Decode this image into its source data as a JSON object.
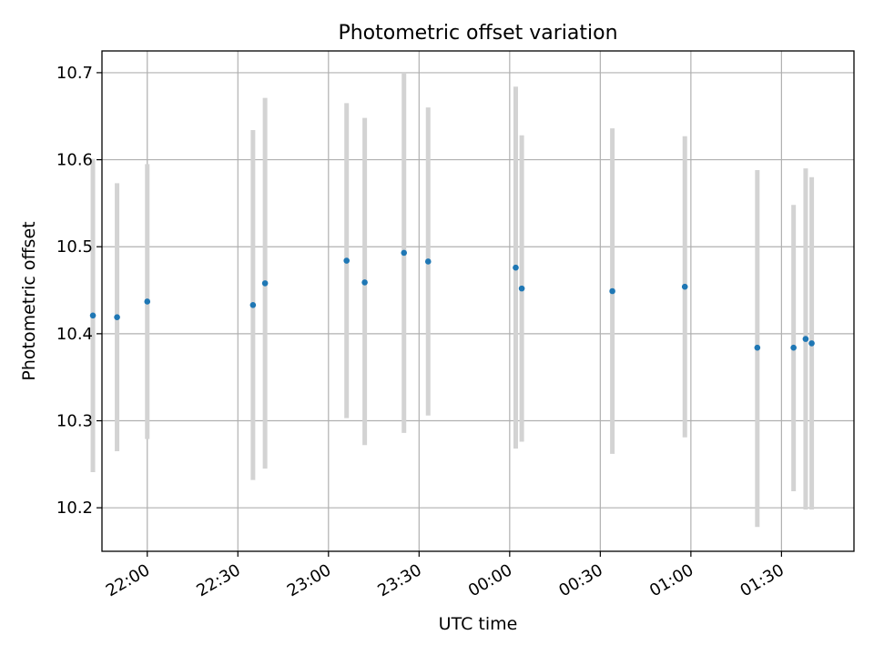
{
  "chart_data": {
    "type": "scatter",
    "title": "Photometric offset variation",
    "xlabel": "UTC time",
    "ylabel": "Photometric offset",
    "grid": true,
    "ylim": [
      10.15,
      10.725
    ],
    "xlim": [
      "21:45",
      "01:54"
    ],
    "x_tick_labels": [
      "22:00",
      "22:30",
      "23:00",
      "23:30",
      "00:00",
      "00:30",
      "01:00",
      "01:30"
    ],
    "y_tick_values": [
      10.2,
      10.3,
      10.4,
      10.5,
      10.6,
      10.7
    ],
    "y_tick_labels": [
      "10.2",
      "10.3",
      "10.4",
      "10.5",
      "10.6",
      "10.7"
    ],
    "point_color": "#1f77b4",
    "errorbar_color": "#d3d3d3",
    "points": [
      {
        "x": "21:42",
        "y": 10.421,
        "lo": 10.241,
        "hi": 10.601
      },
      {
        "x": "21:50",
        "y": 10.419,
        "lo": 10.265,
        "hi": 10.573
      },
      {
        "x": "22:00",
        "y": 10.437,
        "lo": 10.279,
        "hi": 10.595
      },
      {
        "x": "22:35",
        "y": 10.433,
        "lo": 10.232,
        "hi": 10.634
      },
      {
        "x": "22:39",
        "y": 10.458,
        "lo": 10.245,
        "hi": 10.671
      },
      {
        "x": "23:06",
        "y": 10.484,
        "lo": 10.303,
        "hi": 10.665
      },
      {
        "x": "23:12",
        "y": 10.459,
        "lo": 10.272,
        "hi": 10.648
      },
      {
        "x": "23:25",
        "y": 10.493,
        "lo": 10.286,
        "hi": 10.7
      },
      {
        "x": "23:33",
        "y": 10.483,
        "lo": 10.306,
        "hi": 10.66
      },
      {
        "x": "00:02",
        "y": 10.476,
        "lo": 10.268,
        "hi": 10.684
      },
      {
        "x": "00:04",
        "y": 10.452,
        "lo": 10.276,
        "hi": 10.628
      },
      {
        "x": "00:34",
        "y": 10.449,
        "lo": 10.262,
        "hi": 10.636
      },
      {
        "x": "00:58",
        "y": 10.454,
        "lo": 10.281,
        "hi": 10.627
      },
      {
        "x": "01:22",
        "y": 10.384,
        "lo": 10.178,
        "hi": 10.588
      },
      {
        "x": "01:34",
        "y": 10.384,
        "lo": 10.219,
        "hi": 10.548
      },
      {
        "x": "01:38",
        "y": 10.394,
        "lo": 10.198,
        "hi": 10.59
      },
      {
        "x": "01:40",
        "y": 10.389,
        "lo": 10.198,
        "hi": 10.58
      }
    ]
  }
}
